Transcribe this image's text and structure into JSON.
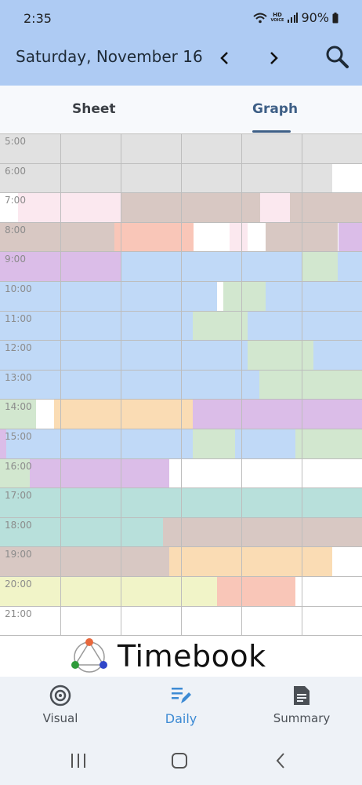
{
  "status_bar": {
    "time": "2:35",
    "hd_label": "HD",
    "voice_label": "VOICE",
    "battery": "90%"
  },
  "header": {
    "date": "Saturday, November 16",
    "colors": {
      "background": "#aecbf3"
    }
  },
  "tabs": [
    {
      "label": "Sheet",
      "active": false
    },
    {
      "label": "Graph",
      "active": true
    }
  ],
  "palette": {
    "gray": "#e1e1e1",
    "pink": "#fbe8ef",
    "taupe": "#d8c8c3",
    "salmon": "#f9c6b8",
    "lavender": "#dbbde8",
    "blue": "#c0d9f7",
    "green": "#d2e7cf",
    "orange": "#fadcb4",
    "teal": "#b8e0db",
    "lime": "#f1f4c8",
    "white": "#ffffff"
  },
  "timeline": {
    "hours": [
      {
        "label": "5:00",
        "blocks": [
          [
            "gray",
            1
          ]
        ]
      },
      {
        "label": "6:00",
        "blocks": [
          [
            "gray",
            0.917
          ],
          [
            "white",
            0.083
          ]
        ]
      },
      {
        "label": "7:00",
        "blocks": [
          [
            "white",
            0.05
          ],
          [
            "pink",
            0.283
          ],
          [
            "taupe",
            0.385
          ],
          [
            "pink",
            0.082
          ],
          [
            "taupe",
            0.2
          ]
        ]
      },
      {
        "label": "8:00",
        "blocks": [
          [
            "taupe",
            0.317
          ],
          [
            "salmon",
            0.217
          ],
          [
            "white",
            0.1
          ],
          [
            "pink",
            0.05
          ],
          [
            "white",
            0.05
          ],
          [
            "taupe",
            0.2
          ],
          [
            "lavender",
            0.066
          ]
        ]
      },
      {
        "label": "9:00",
        "blocks": [
          [
            "lavender",
            0.333
          ],
          [
            "blue",
            0.5
          ],
          [
            "green",
            0.1
          ],
          [
            "blue",
            0.067
          ]
        ]
      },
      {
        "label": "10:00",
        "blocks": [
          [
            "blue",
            0.6
          ],
          [
            "white",
            0.017
          ],
          [
            "green",
            0.116
          ],
          [
            "blue",
            0.267
          ]
        ]
      },
      {
        "label": "11:00",
        "blocks": [
          [
            "blue",
            0.533
          ],
          [
            "green",
            0.15
          ],
          [
            "blue",
            0.317
          ]
        ]
      },
      {
        "label": "12:00",
        "blocks": [
          [
            "blue",
            0.683
          ],
          [
            "green",
            0.183
          ],
          [
            "blue",
            0.134
          ]
        ]
      },
      {
        "label": "13:00",
        "blocks": [
          [
            "blue",
            0.717
          ],
          [
            "green",
            0.283
          ]
        ]
      },
      {
        "label": "14:00",
        "blocks": [
          [
            "green",
            0.1
          ],
          [
            "white",
            0.05
          ],
          [
            "orange",
            0.383
          ],
          [
            "lavender",
            0.467
          ]
        ]
      },
      {
        "label": "15:00",
        "blocks": [
          [
            "lavender",
            0.017
          ],
          [
            "blue",
            0.516
          ],
          [
            "green",
            0.117
          ],
          [
            "blue",
            0.167
          ],
          [
            "green",
            0.183
          ]
        ]
      },
      {
        "label": "16:00",
        "blocks": [
          [
            "green",
            0.083
          ],
          [
            "lavender",
            0.384
          ],
          [
            "white",
            0.533
          ]
        ]
      },
      {
        "label": "17:00",
        "blocks": [
          [
            "teal",
            1
          ]
        ]
      },
      {
        "label": "18:00",
        "blocks": [
          [
            "teal",
            0.45
          ],
          [
            "taupe",
            0.55
          ]
        ]
      },
      {
        "label": "19:00",
        "blocks": [
          [
            "taupe",
            0.467
          ],
          [
            "orange",
            0.45
          ],
          [
            "white",
            0.083
          ]
        ]
      },
      {
        "label": "20:00",
        "blocks": [
          [
            "lime",
            0.6
          ],
          [
            "salmon",
            0.217
          ],
          [
            "white",
            0.183
          ]
        ]
      },
      {
        "label": "21:00",
        "blocks": [
          [
            "white",
            1
          ]
        ]
      }
    ]
  },
  "branding": {
    "app_name": "Timebook"
  },
  "bottom_nav": [
    {
      "label": "Visual",
      "icon": "target-icon",
      "active": false
    },
    {
      "label": "Daily",
      "icon": "list-edit-icon",
      "active": true
    },
    {
      "label": "Summary",
      "icon": "document-icon",
      "active": false
    }
  ]
}
